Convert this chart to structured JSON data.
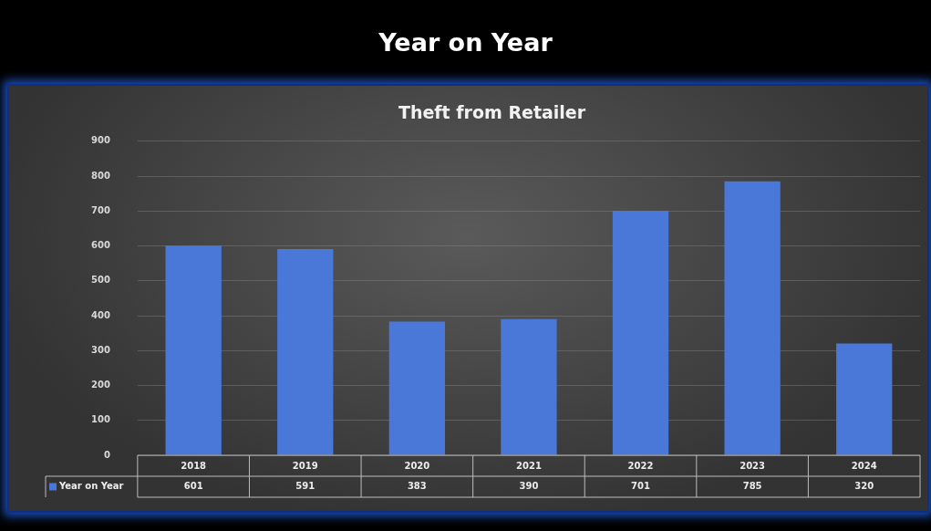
{
  "chart_data": {
    "type": "bar",
    "title": "Year on Year",
    "subtitle": "Theft from Retailer",
    "categories": [
      "2018",
      "2019",
      "2020",
      "2021",
      "2022",
      "2023",
      "2024"
    ],
    "series": [
      {
        "name": "Year on Year",
        "color": "#4a78d8",
        "values": [
          601,
          591,
          383,
          390,
          701,
          785,
          320
        ]
      }
    ],
    "ylim": [
      0,
      900
    ],
    "yticks": [
      0,
      100,
      200,
      300,
      400,
      500,
      600,
      700,
      800,
      900
    ],
    "grid": "y",
    "legend": "bottom",
    "data_labels": true
  }
}
